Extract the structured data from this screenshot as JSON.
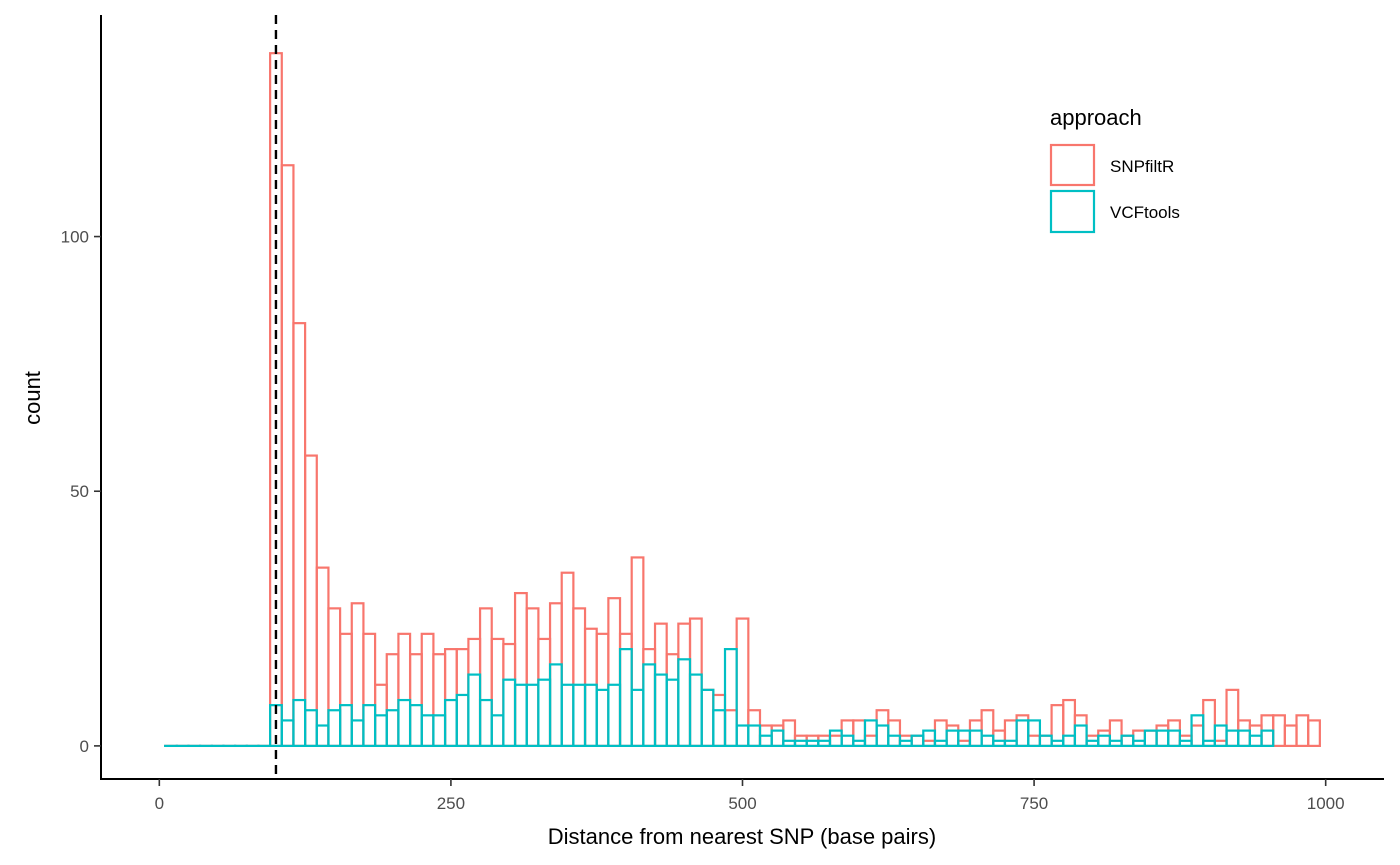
{
  "chart_data": {
    "type": "histogram",
    "xlabel": "Distance from nearest SNP (base pairs)",
    "ylabel": "count",
    "xlim": [
      -50,
      1050
    ],
    "ylim": [
      -6.5,
      143.5
    ],
    "x_ticks": [
      0,
      250,
      500,
      750,
      1000
    ],
    "y_ticks": [
      0,
      50,
      100
    ],
    "bin_width": 10,
    "x_start": 5,
    "vline": {
      "x": 100,
      "style": "dashed",
      "color": "#000000"
    },
    "legend": {
      "title": "approach",
      "position": "top-right"
    },
    "series": [
      {
        "name": "SNPfiltR",
        "color": "#F8766D",
        "counts": [
          0,
          0,
          0,
          0,
          0,
          0,
          0,
          0,
          0,
          136,
          114,
          83,
          57,
          35,
          27,
          22,
          28,
          22,
          12,
          18,
          22,
          18,
          22,
          18,
          19,
          19,
          21,
          27,
          21,
          20,
          30,
          27,
          21,
          28,
          34,
          27,
          23,
          22,
          29,
          22,
          37,
          19,
          24,
          18,
          24,
          25,
          11,
          10,
          7,
          25,
          7,
          4,
          4,
          5,
          2,
          2,
          2,
          2,
          5,
          5,
          2,
          7,
          5,
          2,
          2,
          1,
          5,
          4,
          1,
          5,
          7,
          3,
          5,
          6,
          2,
          2,
          8,
          9,
          6,
          2,
          3,
          5,
          2,
          3,
          3,
          4,
          5,
          2,
          4,
          9,
          1,
          11,
          5,
          4,
          6,
          6,
          4,
          6,
          5
        ]
      },
      {
        "name": "VCFtools",
        "color": "#00BFC4",
        "counts": [
          0,
          0,
          0,
          0,
          0,
          0,
          0,
          0,
          0,
          8,
          5,
          9,
          7,
          4,
          7,
          8,
          5,
          8,
          6,
          7,
          9,
          8,
          6,
          6,
          9,
          10,
          14,
          9,
          6,
          13,
          12,
          12,
          13,
          16,
          12,
          12,
          12,
          11,
          12,
          19,
          11,
          16,
          14,
          13,
          17,
          14,
          11,
          7,
          19,
          4,
          4,
          2,
          3,
          1,
          1,
          1,
          1,
          3,
          2,
          1,
          5,
          4,
          2,
          1,
          2,
          3,
          1,
          3,
          3,
          3,
          2,
          1,
          1,
          5,
          5,
          2,
          1,
          2,
          4,
          1,
          2,
          1,
          2,
          1,
          3,
          3,
          3,
          1,
          6,
          1,
          4,
          3,
          3,
          2,
          3
        ]
      }
    ]
  }
}
